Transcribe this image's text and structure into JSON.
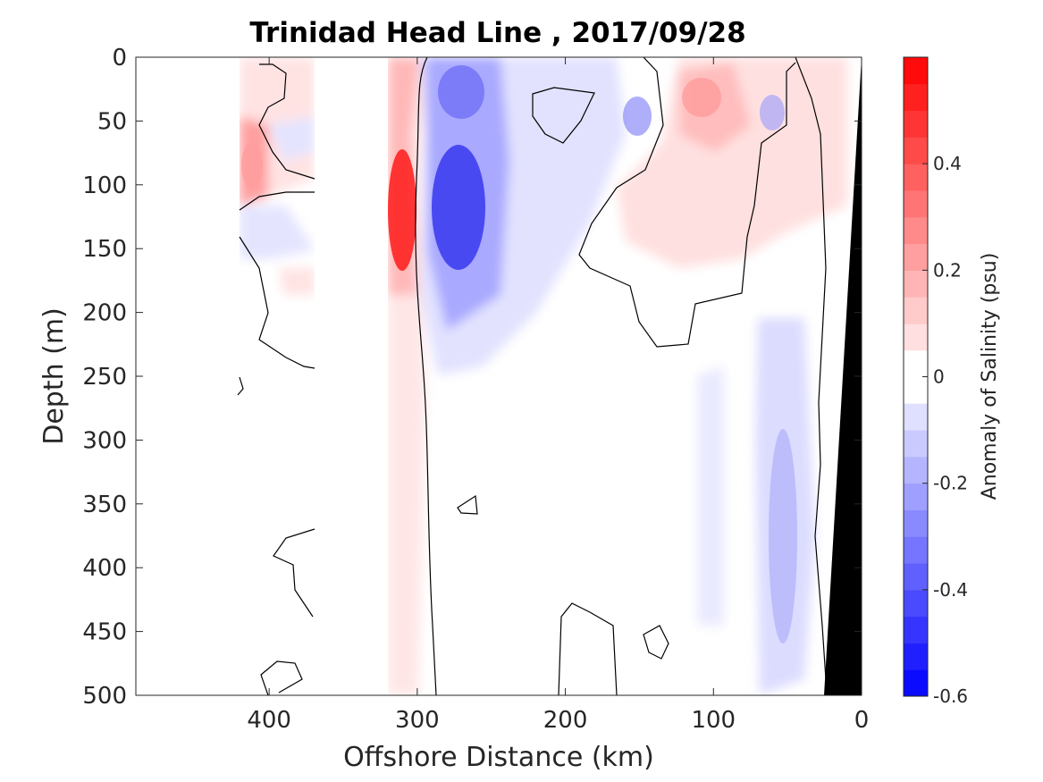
{
  "chart_data": {
    "type": "heatmap",
    "title": "Trinidad Head Line , 2017/09/28",
    "xlabel": "Offshore Distance (km)",
    "ylabel": "Depth (m)",
    "xlim": [
      490,
      0
    ],
    "ylim": [
      500,
      0
    ],
    "x_ticks": [
      400,
      300,
      200,
      100,
      0
    ],
    "y_ticks": [
      0,
      50,
      100,
      150,
      200,
      250,
      300,
      350,
      400,
      450,
      500
    ],
    "colorbar": {
      "label": "Anomaly of Salinity (psu)",
      "range": [
        -0.6,
        0.6
      ],
      "levels": 24,
      "ticks": [
        0.4,
        0.2,
        0,
        -0.2,
        -0.4,
        -0.6
      ],
      "negative_color": "#0000ff",
      "positive_color": "#ff0000"
    },
    "features": [
      {
        "x_km": 310,
        "depth_m": 115,
        "anomaly": 0.5
      },
      {
        "x_km": 270,
        "depth_m": 120,
        "anomaly": -0.45
      },
      {
        "x_km": 270,
        "depth_m": 30,
        "anomaly": -0.3
      },
      {
        "x_km": 150,
        "depth_m": 50,
        "anomaly": -0.2
      },
      {
        "x_km": 200,
        "depth_m": 35,
        "anomaly": 0.08
      },
      {
        "x_km": 115,
        "depth_m": 30,
        "anomaly": 0.15
      },
      {
        "x_km": 420,
        "depth_m": 75,
        "anomaly": 0.2
      },
      {
        "x_km": 55,
        "depth_m": 400,
        "anomaly": -0.12
      },
      {
        "x_km": 110,
        "depth_m": 380,
        "anomaly": -0.05
      },
      {
        "x_km": 310,
        "depth_m": 350,
        "anomaly": 0.05
      }
    ],
    "no_data_ranges_km": [
      [
        490,
        420
      ],
      [
        370,
        320
      ]
    ],
    "bathymetry_color": "#000000"
  }
}
